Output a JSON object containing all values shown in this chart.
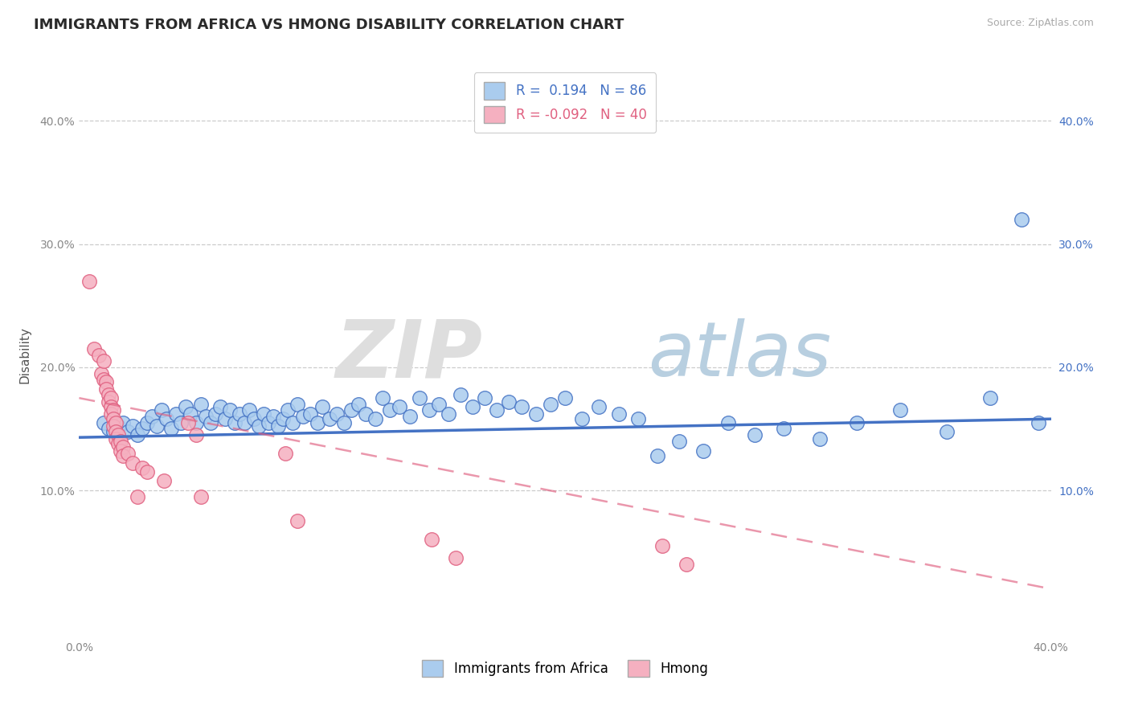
{
  "title": "IMMIGRANTS FROM AFRICA VS HMONG DISABILITY CORRELATION CHART",
  "source": "Source: ZipAtlas.com",
  "ylabel": "Disability",
  "xlim": [
    0.0,
    0.4
  ],
  "ylim": [
    -0.02,
    0.44
  ],
  "yticks": [
    0.1,
    0.2,
    0.3,
    0.4
  ],
  "xticks": [
    0.0,
    0.05,
    0.1,
    0.15,
    0.2,
    0.25,
    0.3,
    0.35,
    0.4
  ],
  "color_africa": "#aaccee",
  "color_hmong": "#f5b0c0",
  "line_color_africa": "#4472c4",
  "line_color_hmong": "#e06080",
  "africa_r": "0.194",
  "africa_n": "86",
  "hmong_r": "-0.092",
  "hmong_n": "40",
  "africa_label": "Immigrants from Africa",
  "hmong_label": "Hmong",
  "africa_points": [
    [
      0.01,
      0.155
    ],
    [
      0.012,
      0.15
    ],
    [
      0.014,
      0.148
    ],
    [
      0.016,
      0.152
    ],
    [
      0.018,
      0.155
    ],
    [
      0.02,
      0.148
    ],
    [
      0.022,
      0.152
    ],
    [
      0.024,
      0.145
    ],
    [
      0.026,
      0.15
    ],
    [
      0.028,
      0.155
    ],
    [
      0.03,
      0.16
    ],
    [
      0.032,
      0.152
    ],
    [
      0.034,
      0.165
    ],
    [
      0.036,
      0.158
    ],
    [
      0.038,
      0.15
    ],
    [
      0.04,
      0.162
    ],
    [
      0.042,
      0.155
    ],
    [
      0.044,
      0.168
    ],
    [
      0.046,
      0.162
    ],
    [
      0.048,
      0.155
    ],
    [
      0.05,
      0.17
    ],
    [
      0.052,
      0.16
    ],
    [
      0.054,
      0.155
    ],
    [
      0.056,
      0.162
    ],
    [
      0.058,
      0.168
    ],
    [
      0.06,
      0.158
    ],
    [
      0.062,
      0.165
    ],
    [
      0.064,
      0.155
    ],
    [
      0.066,
      0.162
    ],
    [
      0.068,
      0.155
    ],
    [
      0.07,
      0.165
    ],
    [
      0.072,
      0.158
    ],
    [
      0.074,
      0.152
    ],
    [
      0.076,
      0.162
    ],
    [
      0.078,
      0.155
    ],
    [
      0.08,
      0.16
    ],
    [
      0.082,
      0.152
    ],
    [
      0.084,
      0.158
    ],
    [
      0.086,
      0.165
    ],
    [
      0.088,
      0.155
    ],
    [
      0.09,
      0.17
    ],
    [
      0.092,
      0.16
    ],
    [
      0.095,
      0.162
    ],
    [
      0.098,
      0.155
    ],
    [
      0.1,
      0.168
    ],
    [
      0.103,
      0.158
    ],
    [
      0.106,
      0.162
    ],
    [
      0.109,
      0.155
    ],
    [
      0.112,
      0.165
    ],
    [
      0.115,
      0.17
    ],
    [
      0.118,
      0.162
    ],
    [
      0.122,
      0.158
    ],
    [
      0.125,
      0.175
    ],
    [
      0.128,
      0.165
    ],
    [
      0.132,
      0.168
    ],
    [
      0.136,
      0.16
    ],
    [
      0.14,
      0.175
    ],
    [
      0.144,
      0.165
    ],
    [
      0.148,
      0.17
    ],
    [
      0.152,
      0.162
    ],
    [
      0.157,
      0.178
    ],
    [
      0.162,
      0.168
    ],
    [
      0.167,
      0.175
    ],
    [
      0.172,
      0.165
    ],
    [
      0.177,
      0.172
    ],
    [
      0.182,
      0.168
    ],
    [
      0.188,
      0.162
    ],
    [
      0.194,
      0.17
    ],
    [
      0.2,
      0.175
    ],
    [
      0.207,
      0.158
    ],
    [
      0.214,
      0.168
    ],
    [
      0.222,
      0.162
    ],
    [
      0.23,
      0.158
    ],
    [
      0.238,
      0.128
    ],
    [
      0.247,
      0.14
    ],
    [
      0.257,
      0.132
    ],
    [
      0.267,
      0.155
    ],
    [
      0.278,
      0.145
    ],
    [
      0.29,
      0.15
    ],
    [
      0.305,
      0.142
    ],
    [
      0.32,
      0.155
    ],
    [
      0.338,
      0.165
    ],
    [
      0.357,
      0.148
    ],
    [
      0.375,
      0.175
    ],
    [
      0.388,
      0.32
    ],
    [
      0.395,
      0.155
    ]
  ],
  "hmong_points": [
    [
      0.004,
      0.27
    ],
    [
      0.006,
      0.215
    ],
    [
      0.008,
      0.21
    ],
    [
      0.009,
      0.195
    ],
    [
      0.01,
      0.205
    ],
    [
      0.01,
      0.19
    ],
    [
      0.011,
      0.188
    ],
    [
      0.011,
      0.182
    ],
    [
      0.012,
      0.178
    ],
    [
      0.012,
      0.172
    ],
    [
      0.013,
      0.175
    ],
    [
      0.013,
      0.168
    ],
    [
      0.013,
      0.162
    ],
    [
      0.014,
      0.165
    ],
    [
      0.014,
      0.158
    ],
    [
      0.014,
      0.152
    ],
    [
      0.015,
      0.155
    ],
    [
      0.015,
      0.148
    ],
    [
      0.015,
      0.142
    ],
    [
      0.016,
      0.145
    ],
    [
      0.016,
      0.138
    ],
    [
      0.017,
      0.14
    ],
    [
      0.017,
      0.132
    ],
    [
      0.018,
      0.135
    ],
    [
      0.018,
      0.128
    ],
    [
      0.02,
      0.13
    ],
    [
      0.022,
      0.122
    ],
    [
      0.024,
      0.095
    ],
    [
      0.026,
      0.118
    ],
    [
      0.028,
      0.115
    ],
    [
      0.035,
      0.108
    ],
    [
      0.045,
      0.155
    ],
    [
      0.048,
      0.145
    ],
    [
      0.05,
      0.095
    ],
    [
      0.085,
      0.13
    ],
    [
      0.09,
      0.075
    ],
    [
      0.145,
      0.06
    ],
    [
      0.155,
      0.045
    ],
    [
      0.24,
      0.055
    ],
    [
      0.25,
      0.04
    ]
  ],
  "africa_trend_x": [
    0.0,
    0.4
  ],
  "africa_trend_y": [
    0.143,
    0.158
  ],
  "hmong_trend_x": [
    0.0,
    0.4
  ],
  "hmong_trend_y": [
    0.175,
    0.02
  ]
}
